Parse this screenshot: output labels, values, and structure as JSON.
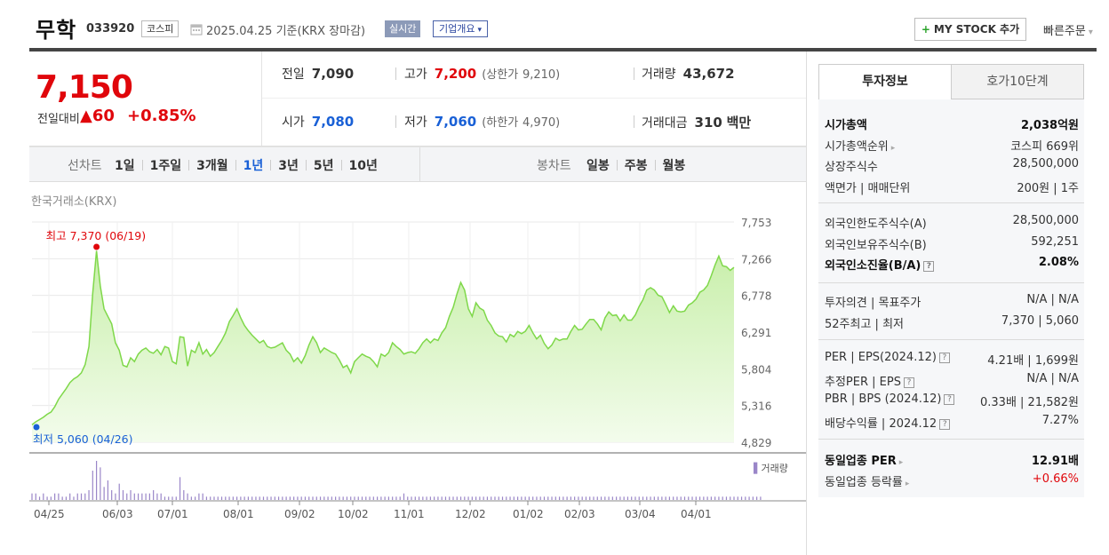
{
  "header": {
    "name": "무학",
    "code": "033920",
    "market": "코스피",
    "date": "2025.04.25 기준(KRX 장마감)",
    "realtime": "실시간",
    "company": "기업개요",
    "mystock": "MY STOCK 추가",
    "quick": "빠른주문"
  },
  "price": {
    "current": "7,150",
    "diff_label": "전일대비",
    "diff": "60",
    "pct": "+0.85%",
    "stats": {
      "prev_label": "전일",
      "prev": "7,090",
      "high_label": "고가",
      "high": "7,200",
      "upper_label": "(상한가",
      "upper": "9,210)",
      "volume_label": "거래량",
      "volume": "43,672",
      "open_label": "시가",
      "open": "7,080",
      "low_label": "저가",
      "low": "7,060",
      "lower_label": "(하한가",
      "lower": "4,970)",
      "amount_label": "거래대금",
      "amount": "310",
      "amount_unit": "백만"
    }
  },
  "period": {
    "line_label": "선차트",
    "line_tabs": [
      "1일",
      "1주일",
      "3개월",
      "1년",
      "3년",
      "5년",
      "10년"
    ],
    "selected": "1년",
    "candle_label": "봉차트",
    "candle_tabs": [
      "일봉",
      "주봉",
      "월봉"
    ]
  },
  "chart": {
    "source": "한국거래소(KRX)",
    "max_label": "최고 7,370 (06/19)",
    "min_label": "최저 5,060 (04/26)",
    "volume_label": "거래량",
    "colors": {
      "line": "#7fd84a",
      "fill_top": "#c8efaa",
      "fill_bottom": "#f3fcec",
      "high": "#e0060b",
      "low": "#1960d6",
      "volume": "#9a86c8"
    }
  },
  "chart_data": {
    "type": "area",
    "title": "",
    "ylim": [
      4829,
      7753
    ],
    "yticks": [
      "7,753",
      "7,266",
      "6,778",
      "6,291",
      "5,804",
      "5,316",
      "4,829"
    ],
    "xticks": [
      "04/25",
      "06/03",
      "07/01",
      "08/01",
      "09/02",
      "10/02",
      "11/01",
      "12/02",
      "01/02",
      "02/03",
      "03/04",
      "04/01"
    ],
    "series": [
      {
        "values": [
          5060,
          5100,
          5130,
          5160,
          5200,
          5230,
          5300,
          5400,
          5470,
          5540,
          5620,
          5670,
          5700,
          5750,
          5860,
          6100,
          6800,
          7370,
          6900,
          6600,
          6500,
          6400,
          6150,
          6050,
          5850,
          5830,
          5950,
          5900,
          6000,
          6050,
          6080,
          6030,
          6010,
          6060,
          5990,
          6100,
          6080,
          5900,
          5870,
          6230,
          6220,
          5840,
          6050,
          6020,
          6150,
          6000,
          6060,
          5970,
          6020,
          6100,
          6180,
          6280,
          6430,
          6510,
          6600,
          6480,
          6380,
          6310,
          6250,
          6200,
          6150,
          6180,
          6100,
          6080,
          6090,
          6120,
          6150,
          6050,
          6000,
          5900,
          5950,
          5880,
          5980,
          6120,
          6230,
          6150,
          6020,
          6080,
          6050,
          6020,
          6000,
          5920,
          5820,
          5850,
          5750,
          5900,
          5950,
          6000,
          5970,
          5950,
          5900,
          5830,
          6000,
          5970,
          6020,
          6150,
          6100,
          6060,
          6000,
          6020,
          6030,
          6010,
          6070,
          6150,
          6200,
          6150,
          6200,
          6180,
          6280,
          6350,
          6500,
          6620,
          6800,
          6950,
          6850,
          6600,
          6500,
          6680,
          6610,
          6580,
          6450,
          6380,
          6280,
          6240,
          6230,
          6160,
          6260,
          6230,
          6300,
          6270,
          6300,
          6380,
          6280,
          6200,
          6250,
          6140,
          6070,
          6120,
          6210,
          6180,
          6200,
          6200,
          6300,
          6380,
          6320,
          6330,
          6400,
          6460,
          6460,
          6400,
          6320,
          6480,
          6560,
          6510,
          6520,
          6440,
          6520,
          6450,
          6450,
          6520,
          6630,
          6720,
          6850,
          6880,
          6850,
          6780,
          6760,
          6660,
          6550,
          6640,
          6570,
          6560,
          6570,
          6650,
          6680,
          6730,
          6820,
          6850,
          6910,
          7040,
          7180,
          7300,
          7170,
          7160,
          7110,
          7150
        ]
      }
    ],
    "volume": [
      2,
      2,
      1,
      2,
      1,
      1,
      2,
      2,
      1,
      1,
      2,
      1,
      2,
      2,
      2,
      3,
      9,
      12,
      10,
      4,
      6,
      3,
      2,
      5,
      3,
      2,
      3,
      2,
      2,
      2,
      2,
      2,
      3,
      2,
      2,
      1,
      1,
      1,
      1,
      7,
      3,
      2,
      1,
      1,
      2,
      2,
      1,
      1,
      1,
      1,
      1,
      1,
      1,
      1,
      1,
      1,
      1,
      1,
      1,
      1,
      1,
      1,
      1,
      1,
      1,
      1,
      1,
      1,
      1,
      1,
      1,
      1,
      1,
      1,
      1,
      1,
      1,
      1,
      1,
      1,
      1,
      1,
      1,
      1,
      1,
      1,
      1,
      1,
      1,
      1,
      1,
      1,
      1,
      1,
      1,
      1,
      1,
      1,
      2,
      1,
      1,
      1,
      1,
      1,
      1,
      1,
      1,
      1,
      1,
      1,
      1,
      1,
      1,
      1,
      1,
      1,
      1,
      1,
      1,
      1,
      1,
      1,
      1,
      1,
      1,
      1,
      1,
      1,
      1,
      1,
      1,
      1,
      1,
      1,
      1,
      1,
      1,
      1,
      1,
      1,
      1,
      1,
      1,
      1,
      1,
      1,
      1,
      1,
      1,
      1,
      1,
      1,
      1,
      1,
      1,
      1,
      1,
      1,
      1,
      1,
      1,
      1,
      1,
      1,
      1,
      1,
      1,
      1,
      1,
      1,
      1,
      1,
      1,
      1,
      1,
      1,
      1,
      1,
      1,
      1,
      1,
      1,
      1,
      1,
      1,
      1,
      1,
      1,
      1,
      1,
      1,
      1,
      1
    ]
  },
  "side": {
    "tab_invest": "투자정보",
    "tab_quote": "호가10단계",
    "rows1": [
      {
        "k": "시가총액",
        "v": "2,038억원",
        "bold": true
      },
      {
        "k": "시가총액순위",
        "v": "코스피 669위",
        "arrow": true
      },
      {
        "k": "상장주식수",
        "v": "28,500,000"
      },
      {
        "k": "액면가 | 매매단위",
        "v": "200원 | 1주"
      }
    ],
    "rows2": [
      {
        "k": "외국인한도주식수(A)",
        "v": "28,500,000"
      },
      {
        "k": "외국인보유주식수(B)",
        "v": "592,251"
      },
      {
        "k": "외국인소진율(B/A)",
        "v": "2.08%",
        "bold": true,
        "q": true
      }
    ],
    "rows3": [
      {
        "k": "투자의견 | 목표주가",
        "v": "N/A | N/A"
      },
      {
        "k": "52주최고 | 최저",
        "v": "7,370 | 5,060"
      }
    ],
    "rows4": [
      {
        "k": "PER | EPS(2024.12)",
        "v": "4.21배 | 1,699원",
        "q": true
      },
      {
        "k": "추정PER | EPS",
        "v": "N/A | N/A",
        "q": true
      },
      {
        "k": "PBR | BPS (2024.12)",
        "v": "0.33배 | 21,582원",
        "q": true
      },
      {
        "k": "배당수익률 | 2024.12",
        "v": "7.27%",
        "q": true
      }
    ],
    "rows5": [
      {
        "k": "동일업종 PER",
        "v": "12.91배",
        "bold": true,
        "arrow": true
      },
      {
        "k": "동일업종 등락률",
        "v": "+0.66%",
        "red": true,
        "arrow": true
      }
    ]
  }
}
